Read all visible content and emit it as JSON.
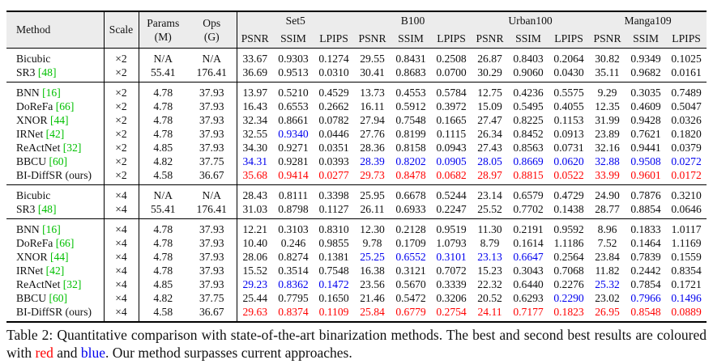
{
  "colors": {
    "best": "#ff0000",
    "second_best": "#0000ee",
    "citation_link": "#00c000",
    "header_background": "#ececec",
    "rule": "#000000"
  },
  "table": {
    "header": {
      "method": "Method",
      "scale": "Scale",
      "params": [
        "Params",
        "(M)"
      ],
      "ops": [
        "Ops",
        "(G)"
      ],
      "groups": [
        "Set5",
        "B100",
        "Urban100",
        "Manga109"
      ],
      "metrics": [
        "PSNR",
        "SSIM",
        "LPIPS"
      ]
    },
    "blocks": [
      {
        "rows": [
          {
            "method": "Bicubic",
            "cite": "",
            "scale": "×2",
            "params": "N/A",
            "ops": "N/A",
            "values": [
              "33.67",
              "0.9303",
              "0.1274",
              "29.55",
              "0.8431",
              "0.2508",
              "26.87",
              "0.8403",
              "0.2064",
              "30.82",
              "0.9349",
              "0.1025"
            ],
            "colors": [
              "",
              "",
              "",
              "",
              "",
              "",
              "",
              "",
              "",
              "",
              "",
              ""
            ]
          },
          {
            "method": "SR3",
            "cite": "[48]",
            "scale": "×2",
            "params": "55.41",
            "ops": "176.41",
            "values": [
              "36.69",
              "0.9513",
              "0.0310",
              "30.41",
              "0.8683",
              "0.0700",
              "30.29",
              "0.9060",
              "0.0430",
              "35.11",
              "0.9682",
              "0.0161"
            ],
            "colors": [
              "",
              "",
              "",
              "",
              "",
              "",
              "",
              "",
              "",
              "",
              "",
              ""
            ]
          }
        ]
      },
      {
        "rows": [
          {
            "method": "BNN",
            "cite": "[16]",
            "scale": "×2",
            "params": "4.78",
            "ops": "37.93",
            "values": [
              "13.97",
              "0.5210",
              "0.4529",
              "13.73",
              "0.4553",
              "0.5784",
              "12.75",
              "0.4236",
              "0.5575",
              "9.29",
              "0.3035",
              "0.7489"
            ],
            "colors": [
              "",
              "",
              "",
              "",
              "",
              "",
              "",
              "",
              "",
              "",
              "",
              ""
            ]
          },
          {
            "method": "DoReFa",
            "cite": "[66]",
            "scale": "×2",
            "params": "4.78",
            "ops": "37.93",
            "values": [
              "16.43",
              "0.6553",
              "0.2662",
              "16.11",
              "0.5912",
              "0.3972",
              "15.09",
              "0.5495",
              "0.4055",
              "12.35",
              "0.4609",
              "0.5047"
            ],
            "colors": [
              "",
              "",
              "",
              "",
              "",
              "",
              "",
              "",
              "",
              "",
              "",
              ""
            ]
          },
          {
            "method": "XNOR",
            "cite": "[44]",
            "scale": "×2",
            "params": "4.78",
            "ops": "37.93",
            "values": [
              "32.34",
              "0.8661",
              "0.0782",
              "27.94",
              "0.7548",
              "0.1665",
              "27.47",
              "0.8225",
              "0.1153",
              "31.99",
              "0.9428",
              "0.0326"
            ],
            "colors": [
              "",
              "",
              "",
              "",
              "",
              "",
              "",
              "",
              "",
              "",
              "",
              ""
            ]
          },
          {
            "method": "IRNet",
            "cite": "[42]",
            "scale": "×2",
            "params": "4.78",
            "ops": "37.93",
            "values": [
              "32.55",
              "0.9340",
              "0.0446",
              "27.76",
              "0.8199",
              "0.1115",
              "26.34",
              "0.8452",
              "0.0913",
              "23.89",
              "0.7621",
              "0.1820"
            ],
            "colors": [
              "",
              "b",
              "",
              "",
              "",
              "",
              "",
              "",
              "",
              "",
              "",
              ""
            ]
          },
          {
            "method": "ReActNet",
            "cite": "[32]",
            "scale": "×2",
            "params": "4.85",
            "ops": "37.93",
            "values": [
              "34.30",
              "0.9271",
              "0.0351",
              "28.36",
              "0.8158",
              "0.0943",
              "27.43",
              "0.8563",
              "0.0731",
              "32.16",
              "0.9441",
              "0.0379"
            ],
            "colors": [
              "",
              "",
              "",
              "",
              "",
              "",
              "",
              "",
              "",
              "",
              "",
              ""
            ]
          },
          {
            "method": "BBCU",
            "cite": "[60]",
            "scale": "×2",
            "params": "4.82",
            "ops": "37.75",
            "values": [
              "34.31",
              "0.9281",
              "0.0393",
              "28.39",
              "0.8202",
              "0.0905",
              "28.05",
              "0.8669",
              "0.0620",
              "32.88",
              "0.9508",
              "0.0272"
            ],
            "colors": [
              "b",
              "",
              "",
              "b",
              "b",
              "b",
              "b",
              "b",
              "b",
              "b",
              "b",
              "b"
            ]
          },
          {
            "method": "BI-DiffSR (ours)",
            "cite": "",
            "scale": "×2",
            "params": "4.58",
            "ops": "36.67",
            "values": [
              "35.68",
              "0.9414",
              "0.0277",
              "29.73",
              "0.8478",
              "0.0682",
              "28.97",
              "0.8815",
              "0.0522",
              "33.99",
              "0.9601",
              "0.0172"
            ],
            "colors": [
              "r",
              "r",
              "r",
              "r",
              "r",
              "r",
              "r",
              "r",
              "r",
              "r",
              "r",
              "r"
            ]
          }
        ]
      },
      {
        "rows": [
          {
            "method": "Bicubic",
            "cite": "",
            "scale": "×4",
            "params": "N/A",
            "ops": "N/A",
            "values": [
              "28.43",
              "0.8111",
              "0.3398",
              "25.95",
              "0.6678",
              "0.5244",
              "23.14",
              "0.6579",
              "0.4729",
              "24.90",
              "0.7876",
              "0.3210"
            ],
            "colors": [
              "",
              "",
              "",
              "",
              "",
              "",
              "",
              "",
              "",
              "",
              "",
              ""
            ]
          },
          {
            "method": "SR3",
            "cite": "[48]",
            "scale": "×4",
            "params": "55.41",
            "ops": "176.41",
            "values": [
              "31.03",
              "0.8798",
              "0.1127",
              "26.11",
              "0.6933",
              "0.2247",
              "25.52",
              "0.7702",
              "0.1438",
              "28.77",
              "0.8854",
              "0.0646"
            ],
            "colors": [
              "",
              "",
              "",
              "",
              "",
              "",
              "",
              "",
              "",
              "",
              "",
              ""
            ]
          }
        ]
      },
      {
        "rows": [
          {
            "method": "BNN",
            "cite": "[16]",
            "scale": "×4",
            "params": "4.78",
            "ops": "37.93",
            "values": [
              "12.21",
              "0.3103",
              "0.8310",
              "12.30",
              "0.2128",
              "0.9519",
              "11.30",
              "0.2191",
              "0.9592",
              "8.96",
              "0.1833",
              "1.0117"
            ],
            "colors": [
              "",
              "",
              "",
              "",
              "",
              "",
              "",
              "",
              "",
              "",
              "",
              ""
            ]
          },
          {
            "method": "DoReFa",
            "cite": "[66]",
            "scale": "×4",
            "params": "4.78",
            "ops": "37.93",
            "values": [
              "10.40",
              "0.246",
              "0.9855",
              "9.78",
              "0.1709",
              "1.0793",
              "8.79",
              "0.1614",
              "1.1186",
              "7.52",
              "0.1464",
              "1.1169"
            ],
            "colors": [
              "",
              "",
              "",
              "",
              "",
              "",
              "",
              "",
              "",
              "",
              "",
              ""
            ]
          },
          {
            "method": "XNOR",
            "cite": "[44]",
            "scale": "×4",
            "params": "4.78",
            "ops": "37.93",
            "values": [
              "28.06",
              "0.8274",
              "0.1381",
              "25.25",
              "0.6552",
              "0.3101",
              "23.13",
              "0.6647",
              "0.2564",
              "23.84",
              "0.7839",
              "0.1559"
            ],
            "colors": [
              "",
              "",
              "",
              "b",
              "b",
              "b",
              "b",
              "b",
              "",
              "",
              "",
              ""
            ]
          },
          {
            "method": "IRNet",
            "cite": "[42]",
            "scale": "×4",
            "params": "4.78",
            "ops": "37.93",
            "values": [
              "15.52",
              "0.3514",
              "0.7548",
              "16.38",
              "0.3121",
              "0.7072",
              "15.23",
              "0.3043",
              "0.7068",
              "11.82",
              "0.2442",
              "0.8354"
            ],
            "colors": [
              "",
              "",
              "",
              "",
              "",
              "",
              "",
              "",
              "",
              "",
              "",
              ""
            ]
          },
          {
            "method": "ReActNet",
            "cite": "[32]",
            "scale": "×4",
            "params": "4.85",
            "ops": "37.93",
            "values": [
              "29.23",
              "0.8362",
              "0.1472",
              "23.56",
              "0.5670",
              "0.3339",
              "22.32",
              "0.6440",
              "0.2276",
              "25.32",
              "0.7854",
              "0.1721"
            ],
            "colors": [
              "b",
              "b",
              "b",
              "",
              "",
              "",
              "",
              "",
              "",
              "b",
              "",
              ""
            ]
          },
          {
            "method": "BBCU",
            "cite": "[60]",
            "scale": "×4",
            "params": "4.82",
            "ops": "37.75",
            "values": [
              "25.44",
              "0.7795",
              "0.1650",
              "21.46",
              "0.5472",
              "0.3206",
              "20.52",
              "0.6293",
              "0.2290",
              "23.02",
              "0.7966",
              "0.1496"
            ],
            "colors": [
              "",
              "",
              "",
              "",
              "",
              "",
              "",
              "",
              "b",
              "",
              "b",
              "b"
            ]
          },
          {
            "method": "BI-DiffSR (ours)",
            "cite": "",
            "scale": "×4",
            "params": "4.58",
            "ops": "36.67",
            "values": [
              "29.63",
              "0.8374",
              "0.1109",
              "25.84",
              "0.6779",
              "0.2754",
              "24.11",
              "0.7177",
              "0.1823",
              "26.95",
              "0.8548",
              "0.0889"
            ],
            "colors": [
              "r",
              "r",
              "r",
              "r",
              "r",
              "r",
              "r",
              "r",
              "r",
              "r",
              "r",
              "r"
            ]
          }
        ]
      }
    ]
  },
  "caption": {
    "prefix": "Table 2: Quantitative comparison with state-of-the-art binarization methods. The best and second best results are coloured with ",
    "red_word": "red",
    "and_word": " and ",
    "blue_word": "blue",
    "suffix": ". Our method surpasses current approaches."
  }
}
